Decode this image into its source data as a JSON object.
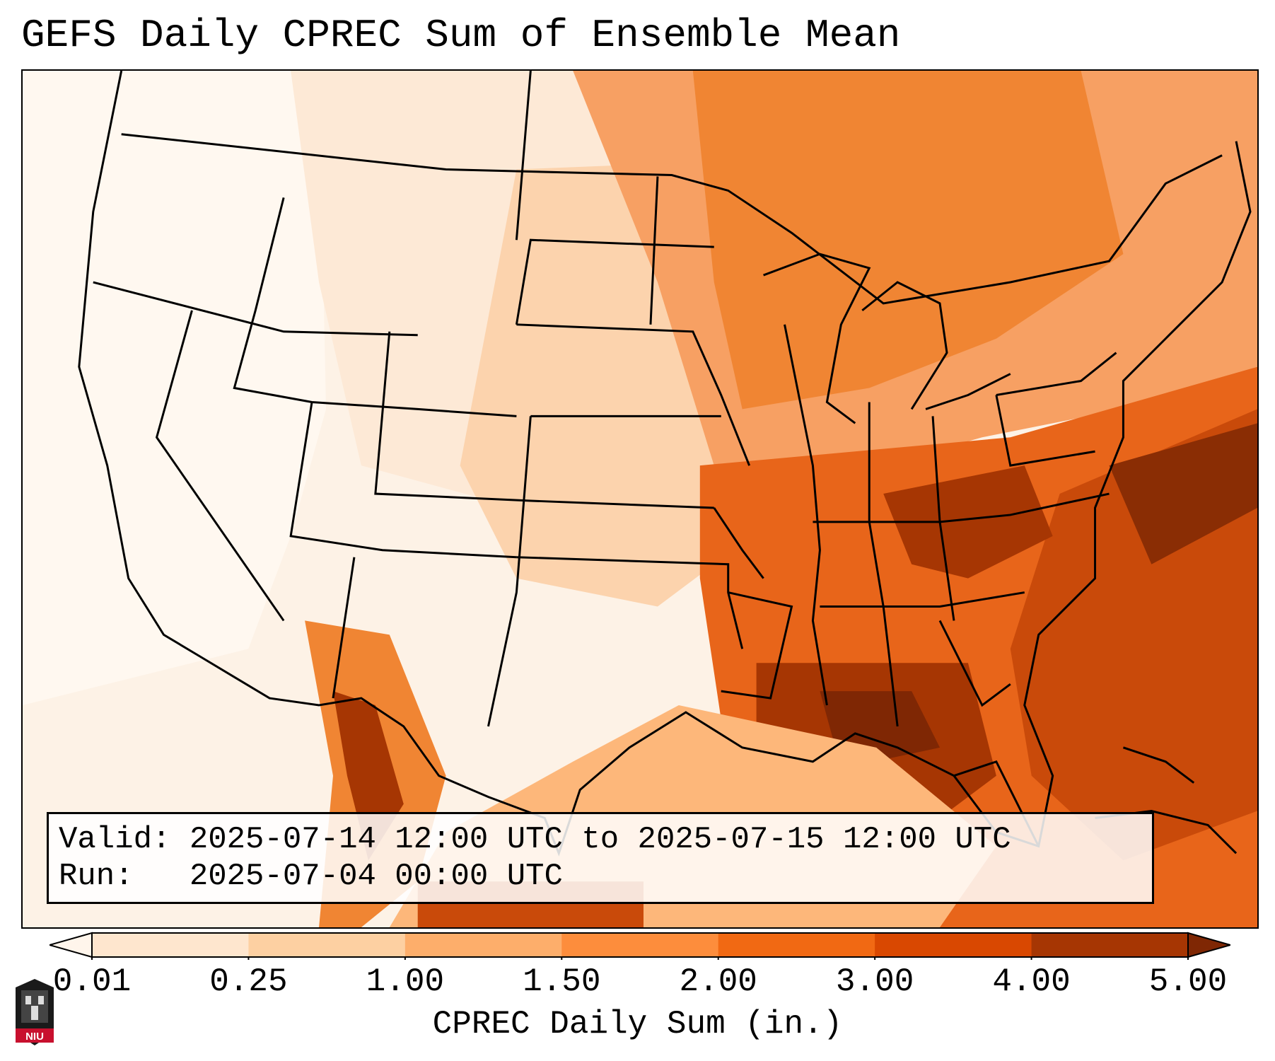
{
  "title": "GEFS Daily CPREC Sum of Ensemble Mean",
  "info": {
    "valid_line": "Valid: 2025-07-14 12:00 UTC to 2025-07-15 12:00 UTC",
    "run_line": "Run:   2025-07-04 00:00 UTC"
  },
  "colorbar": {
    "label": "CPREC Daily Sum (in.)",
    "ticks": [
      "0.01",
      "0.25",
      "1.00",
      "1.50",
      "2.00",
      "3.00",
      "4.00",
      "5.00"
    ],
    "colors": [
      "#fff5eb",
      "#fee6ce",
      "#fdd0a2",
      "#fdae6b",
      "#fd8d3c",
      "#f16913",
      "#d94801",
      "#a63603",
      "#7f2704"
    ],
    "extend": "both"
  },
  "logo": {
    "text": "NIU",
    "icon": "niu-logo-icon"
  }
}
